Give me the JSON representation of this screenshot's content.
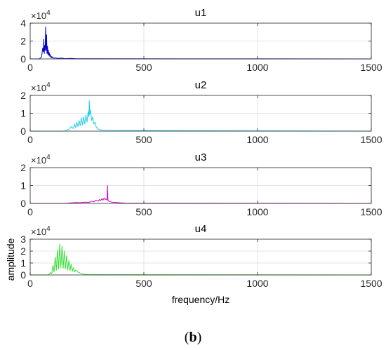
{
  "figure": {
    "caption_open": "(",
    "caption_letter": "b",
    "caption_close": ")",
    "xlabel": "frequency/Hz",
    "ylabel": "amplitude"
  },
  "chart_data": [
    {
      "type": "line",
      "title": "u1",
      "color": "#0000cc",
      "xlim": [
        0,
        1500
      ],
      "ylim": [
        0,
        40000
      ],
      "exponent_label": "×10",
      "exponent_power": "4",
      "x_ticks": [
        0,
        500,
        1000,
        1500
      ],
      "y_ticks": [
        0,
        2,
        4
      ],
      "series": [
        {
          "x": [
            0,
            40,
            50,
            55,
            58,
            60,
            62,
            64,
            66,
            68,
            70,
            72,
            74,
            76,
            78,
            80,
            82,
            84,
            86,
            88,
            90,
            92,
            94,
            96,
            98,
            100,
            105,
            110,
            120,
            140,
            150,
            160,
            180,
            200,
            1500
          ],
          "y": [
            0,
            0,
            2000,
            12000,
            8000,
            22000,
            6000,
            15000,
            10000,
            36000,
            9000,
            27000,
            6000,
            14000,
            5000,
            10000,
            4000,
            7000,
            3000,
            5000,
            2000,
            3000,
            1500,
            2500,
            1000,
            1500,
            800,
            1200,
            600,
            900,
            400,
            300,
            600,
            200,
            0
          ]
        }
      ]
    },
    {
      "type": "line",
      "title": "u2",
      "color": "#22ccee",
      "xlim": [
        0,
        1500
      ],
      "ylim": [
        0,
        20000
      ],
      "exponent_label": "×10",
      "exponent_power": "4",
      "x_ticks": [
        0,
        500,
        1000,
        1500
      ],
      "y_ticks": [
        0,
        1,
        2
      ],
      "series": [
        {
          "x": [
            0,
            150,
            170,
            180,
            190,
            195,
            200,
            205,
            210,
            215,
            220,
            225,
            230,
            235,
            240,
            245,
            250,
            255,
            258,
            260,
            262,
            265,
            270,
            275,
            280,
            285,
            290,
            300,
            320,
            1500
          ],
          "y": [
            0,
            0,
            1000,
            2500,
            1500,
            4000,
            2000,
            5000,
            2500,
            6000,
            3000,
            7500,
            3500,
            8000,
            4000,
            9000,
            5000,
            11000,
            8000,
            17000,
            9000,
            12000,
            6000,
            8000,
            4000,
            5000,
            2500,
            1000,
            500,
            0
          ]
        }
      ]
    },
    {
      "type": "line",
      "title": "u3",
      "color": "#cc00cc",
      "xlim": [
        0,
        1500
      ],
      "ylim": [
        0,
        20000
      ],
      "exponent_label": "×10",
      "exponent_power": "4",
      "x_ticks": [
        0,
        500,
        1000,
        1500
      ],
      "y_ticks": [
        0,
        1,
        2
      ],
      "series": [
        {
          "x": [
            0,
            150,
            180,
            200,
            220,
            240,
            260,
            270,
            280,
            290,
            300,
            305,
            310,
            315,
            320,
            325,
            330,
            335,
            338,
            340,
            342,
            345,
            350,
            360,
            380,
            400,
            420,
            1500
          ],
          "y": [
            0,
            0,
            300,
            500,
            400,
            700,
            600,
            1200,
            900,
            1800,
            1300,
            2200,
            1500,
            2600,
            1800,
            3000,
            2200,
            2500,
            1800,
            10000,
            2000,
            1500,
            1000,
            700,
            500,
            300,
            150,
            0
          ]
        }
      ]
    },
    {
      "type": "line",
      "title": "u4",
      "color": "#33dd33",
      "xlim": [
        0,
        1500
      ],
      "ylim": [
        0,
        30000
      ],
      "exponent_label": "×10",
      "exponent_power": "4",
      "x_ticks": [
        0,
        500,
        1000,
        1500
      ],
      "y_ticks": [
        0,
        1,
        2,
        3
      ],
      "series": [
        {
          "x": [
            0,
            80,
            90,
            95,
            100,
            105,
            110,
            115,
            120,
            125,
            130,
            135,
            140,
            145,
            150,
            155,
            160,
            165,
            170,
            175,
            180,
            185,
            190,
            195,
            200,
            210,
            220,
            230,
            240,
            250,
            1500
          ],
          "y": [
            0,
            0,
            2000,
            1000,
            8000,
            2500,
            15000,
            4000,
            21000,
            5000,
            26000,
            6000,
            24000,
            5500,
            20000,
            5000,
            16000,
            4000,
            12000,
            3500,
            9000,
            3000,
            6000,
            2500,
            4000,
            2500,
            1500,
            1000,
            500,
            200,
            0
          ]
        }
      ]
    }
  ]
}
